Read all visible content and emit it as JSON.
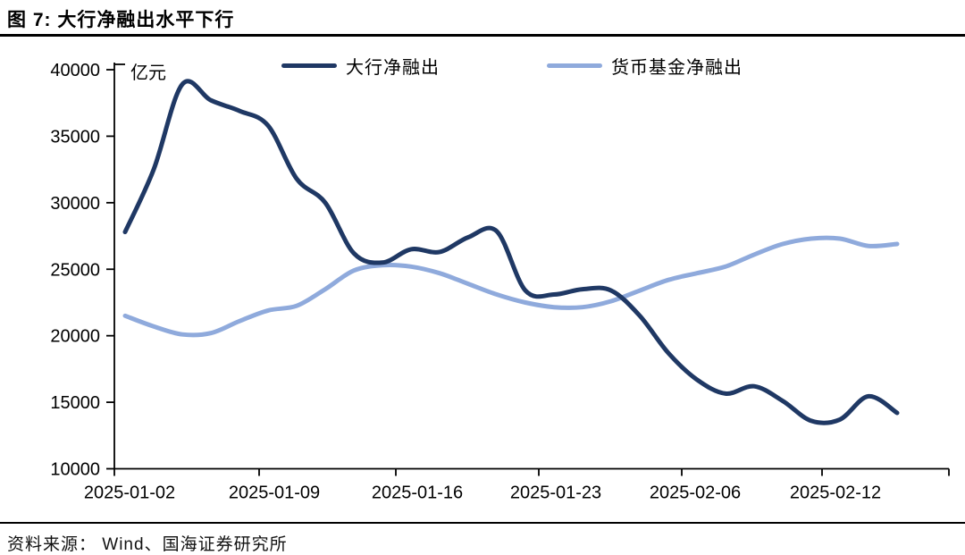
{
  "figure": {
    "title": "图 7:  大行净融出水平下行",
    "source": "资料来源： Wind、国海证券研究所"
  },
  "chart_data": {
    "type": "line",
    "title": "大行净融出水平下行",
    "unit_label": "亿元",
    "xlabel": "",
    "ylabel": "亿元",
    "ylim": [
      10000,
      40000
    ],
    "yticks": [
      10000,
      15000,
      20000,
      25000,
      30000,
      35000,
      40000
    ],
    "grid": false,
    "legend_position": "top",
    "x": [
      "2025-01-02",
      "2025-01-03",
      "2025-01-06",
      "2025-01-07",
      "2025-01-08",
      "2025-01-09",
      "2025-01-10",
      "2025-01-13",
      "2025-01-14",
      "2025-01-15",
      "2025-01-16",
      "2025-01-17",
      "2025-01-20",
      "2025-01-21",
      "2025-01-22",
      "2025-01-23",
      "2025-01-24",
      "2025-01-26",
      "2025-01-27",
      "2025-02-05",
      "2025-02-06",
      "2025-02-07",
      "2025-02-08",
      "2025-02-10",
      "2025-02-11",
      "2025-02-12",
      "2025-02-13",
      "2025-02-14"
    ],
    "xtick_indices": [
      0,
      5,
      10,
      15,
      20,
      25
    ],
    "xtick_labels": [
      "2025-01-02",
      "2025-01-09",
      "2025-01-16",
      "2025-01-23",
      "2025-02-06",
      "2025-02-12"
    ],
    "series": [
      {
        "name": "大行净融出",
        "color": "#1f3864",
        "values": [
          27800,
          32500,
          38900,
          37700,
          36900,
          35800,
          31800,
          30000,
          26200,
          25500,
          26500,
          26300,
          27400,
          27850,
          23400,
          23100,
          23500,
          23400,
          21500,
          18700,
          16700,
          15650,
          16200,
          15100,
          13600,
          13700,
          15450,
          14200
        ]
      },
      {
        "name": "货币基金净融出",
        "color": "#8faadc",
        "values": [
          21500,
          20700,
          20100,
          20200,
          21100,
          21900,
          22250,
          23500,
          24900,
          25300,
          25200,
          24700,
          23900,
          23100,
          22500,
          22150,
          22150,
          22600,
          23400,
          24200,
          24700,
          25200,
          26100,
          26900,
          27300,
          27300,
          26750,
          26900
        ]
      }
    ]
  }
}
